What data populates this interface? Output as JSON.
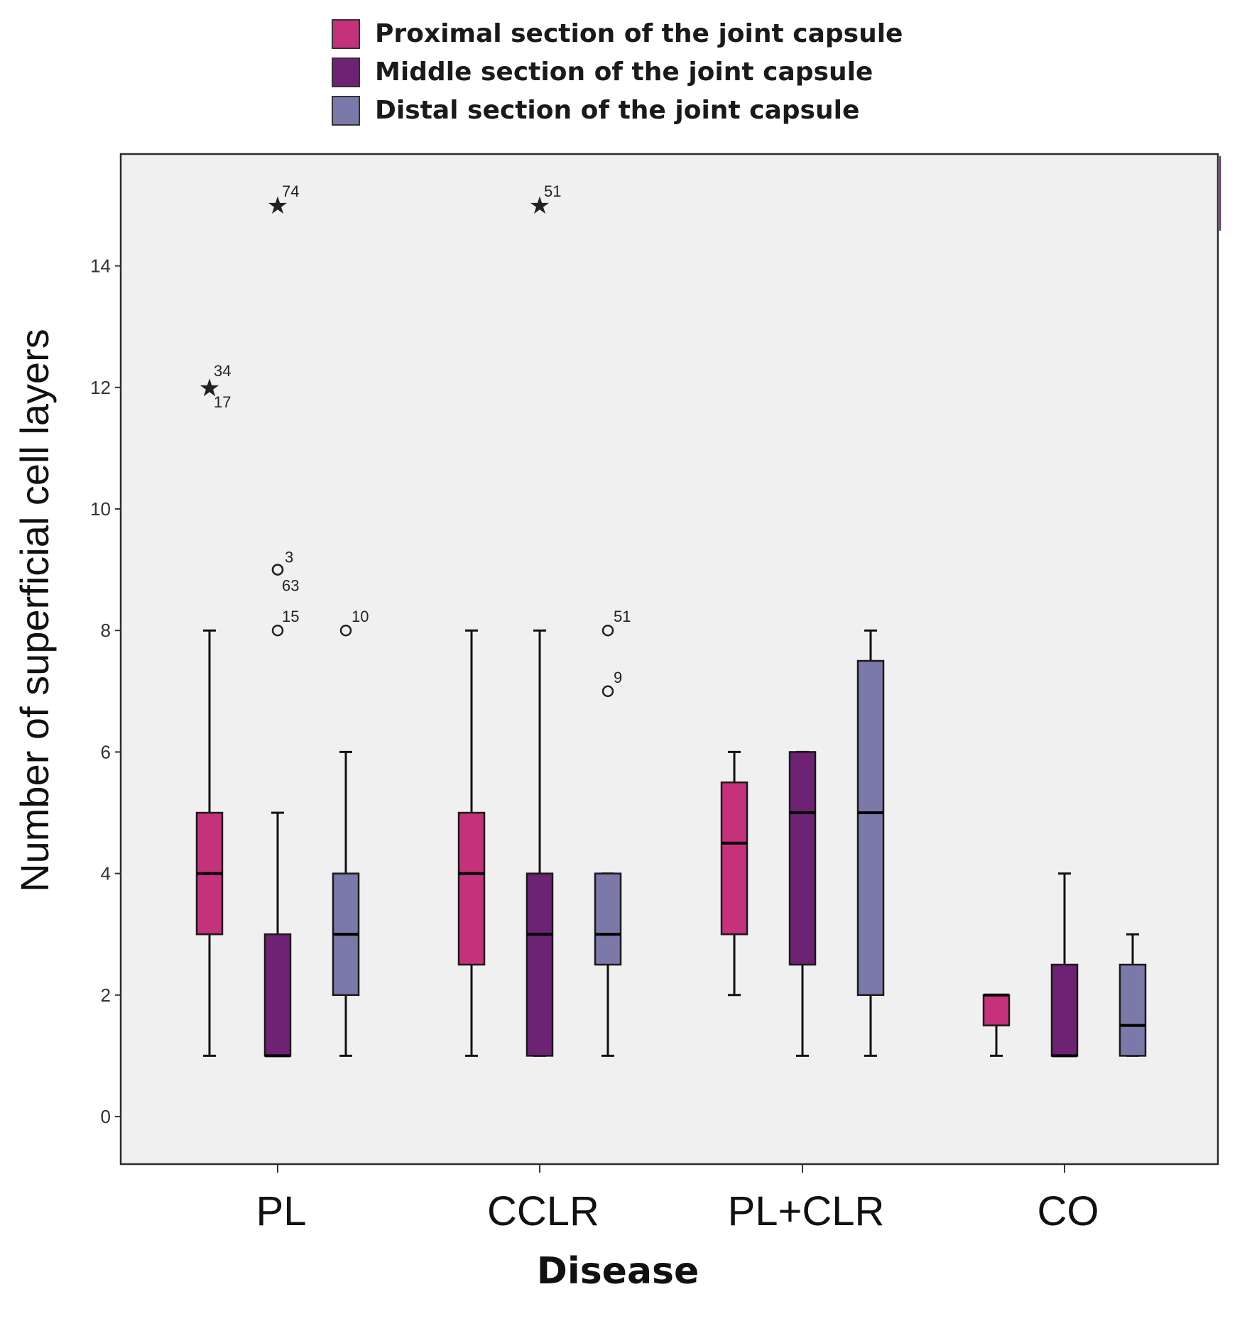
{
  "chart_data": {
    "type": "boxplot",
    "title": "",
    "xlabel": "Disease",
    "ylabel": "Number of superficial cell layers",
    "ylim": [
      -0.75,
      15.9
    ],
    "yticks": [
      0,
      2,
      4,
      6,
      8,
      10,
      12,
      14
    ],
    "categories": [
      "PL",
      "CCLR",
      "PL+CLR",
      "CO"
    ],
    "legend_position": "top-center",
    "series": [
      {
        "name": "Proximal section of the joint capsule",
        "color": "#c6317b",
        "boxes": [
          {
            "whisker_low": 1,
            "q1": 3,
            "median": 4,
            "q3": 5,
            "whisker_high": 8
          },
          {
            "whisker_low": 1,
            "q1": 2.5,
            "median": 4,
            "q3": 5,
            "whisker_high": 8
          },
          {
            "whisker_low": 2,
            "q1": 3,
            "median": 4.5,
            "q3": 5.5,
            "whisker_high": 6
          },
          {
            "whisker_low": 1,
            "q1": 1.5,
            "median": 2,
            "q3": 2,
            "whisker_high": 2
          }
        ]
      },
      {
        "name": "Middle section of the joint capsule",
        "color": "#6e2274",
        "boxes": [
          {
            "whisker_low": 1,
            "q1": 1,
            "median": 1,
            "q3": 3,
            "whisker_high": 5
          },
          {
            "whisker_low": 1,
            "q1": 1,
            "median": 3,
            "q3": 4,
            "whisker_high": 8
          },
          {
            "whisker_low": 1,
            "q1": 2.5,
            "median": 5,
            "q3": 6,
            "whisker_high": 6
          },
          {
            "whisker_low": 1,
            "q1": 1,
            "median": 1,
            "q3": 2.5,
            "whisker_high": 4
          }
        ]
      },
      {
        "name": "Distal section of the joint capsule",
        "color": "#7b78aa",
        "boxes": [
          {
            "whisker_low": 1,
            "q1": 2,
            "median": 3,
            "q3": 4,
            "whisker_high": 6
          },
          {
            "whisker_low": 1,
            "q1": 2.5,
            "median": 3,
            "q3": 4,
            "whisker_high": 4
          },
          {
            "whisker_low": 1,
            "q1": 2,
            "median": 5,
            "q3": 7.5,
            "whisker_high": 8
          },
          {
            "whisker_low": 1,
            "q1": 1,
            "median": 1.5,
            "q3": 2.5,
            "whisker_high": 3
          }
        ]
      }
    ],
    "outliers": [
      {
        "category": "PL",
        "series": 0,
        "value": 12,
        "marker": "star",
        "label": "34"
      },
      {
        "category": "PL",
        "series": 0,
        "value": 12,
        "marker": "star",
        "label": "17"
      },
      {
        "category": "PL",
        "series": 1,
        "value": 15,
        "marker": "star",
        "label": "74"
      },
      {
        "category": "PL",
        "series": 1,
        "value": 9,
        "marker": "circle",
        "label": "3"
      },
      {
        "category": "PL",
        "series": 1,
        "value": 9,
        "marker": "circle",
        "label": "63"
      },
      {
        "category": "PL",
        "series": 1,
        "value": 8,
        "marker": "circle",
        "label": "15"
      },
      {
        "category": "PL",
        "series": 2,
        "value": 8,
        "marker": "circle",
        "label": "10"
      },
      {
        "category": "CCLR",
        "series": 1,
        "value": 15,
        "marker": "star",
        "label": "51"
      },
      {
        "category": "CCLR",
        "series": 2,
        "value": 8,
        "marker": "circle",
        "label": "51"
      },
      {
        "category": "CCLR",
        "series": 2,
        "value": 7,
        "marker": "circle",
        "label": "9"
      }
    ]
  }
}
